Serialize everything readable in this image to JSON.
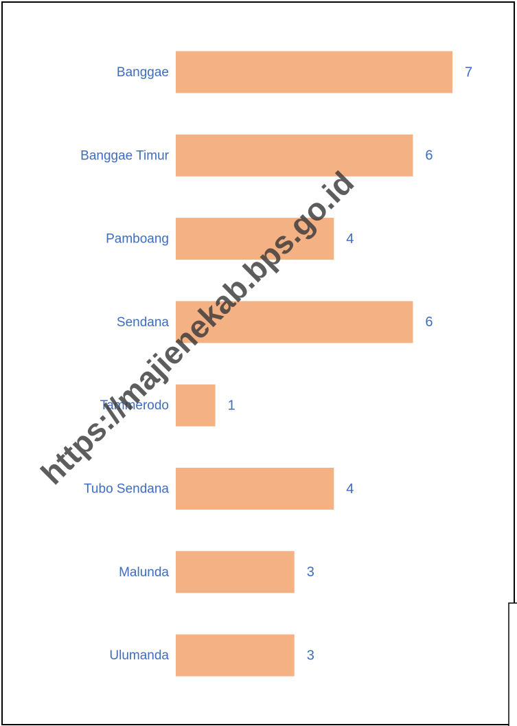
{
  "chart_data": {
    "type": "bar",
    "orientation": "horizontal",
    "categories": [
      "Banggae",
      "Banggae Timur",
      "Pamboang",
      "Sendana",
      "Tammerodo",
      "Tubo Sendana",
      "Malunda",
      "Ulumanda"
    ],
    "values": [
      7,
      6,
      4,
      6,
      1,
      4,
      3,
      3
    ],
    "color": "#f4b183",
    "xlim": [
      0,
      7
    ],
    "watermark": "https://majienekab.bps.go.id"
  }
}
